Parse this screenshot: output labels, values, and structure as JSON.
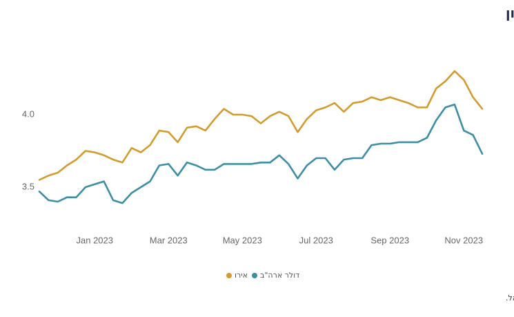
{
  "chart_data": {
    "type": "line",
    "title": "השקל נחלש עם פרוץ המלחמה והתחזק מחדש במהלך החודש האחרון",
    "source": "המקור: נתוני ועיבודי בנק ישראל.",
    "categories": [
      null,
      null,
      null,
      null,
      null,
      null,
      "Jan 2023",
      null,
      null,
      null,
      null,
      null,
      null,
      null,
      "Mar 2023",
      null,
      null,
      null,
      null,
      null,
      null,
      null,
      "May 2023",
      null,
      null,
      null,
      null,
      null,
      null,
      null,
      "Jul 2023",
      null,
      null,
      null,
      null,
      null,
      null,
      null,
      "Sep 2023",
      null,
      null,
      null,
      null,
      null,
      null,
      null,
      "Nov 2023",
      null,
      null
    ],
    "series": [
      {
        "name": "אירו",
        "color": "#d39b2c",
        "values": [
          3.55,
          3.58,
          3.6,
          3.65,
          3.69,
          3.75,
          3.74,
          3.72,
          3.69,
          3.67,
          3.77,
          3.74,
          3.79,
          3.89,
          3.88,
          3.81,
          3.91,
          3.92,
          3.89,
          3.97,
          4.04,
          4.0,
          4.0,
          3.99,
          3.94,
          3.99,
          4.02,
          3.99,
          3.88,
          3.97,
          4.03,
          4.05,
          4.08,
          4.02,
          4.08,
          4.09,
          4.12,
          4.1,
          4.12,
          4.1,
          4.08,
          4.05,
          4.05,
          4.18,
          4.23,
          4.3,
          4.24,
          4.12,
          4.04
        ]
      },
      {
        "name": "דולר ארה\"ב",
        "color": "#3b8ea3",
        "values": [
          3.47,
          3.41,
          3.4,
          3.43,
          3.43,
          3.5,
          3.52,
          3.54,
          3.41,
          3.39,
          3.46,
          3.5,
          3.54,
          3.65,
          3.66,
          3.58,
          3.67,
          3.65,
          3.62,
          3.62,
          3.66,
          3.66,
          3.66,
          3.66,
          3.67,
          3.67,
          3.72,
          3.66,
          3.56,
          3.65,
          3.7,
          3.7,
          3.62,
          3.69,
          3.7,
          3.7,
          3.79,
          3.8,
          3.8,
          3.81,
          3.81,
          3.81,
          3.84,
          3.96,
          4.05,
          4.07,
          3.89,
          3.86,
          3.73
        ]
      }
    ],
    "ylim": [
      3.3,
      4.4
    ],
    "yticks": [
      3.5,
      {
        "value": 4,
        "label": "4.0"
      }
    ],
    "grid": false
  }
}
